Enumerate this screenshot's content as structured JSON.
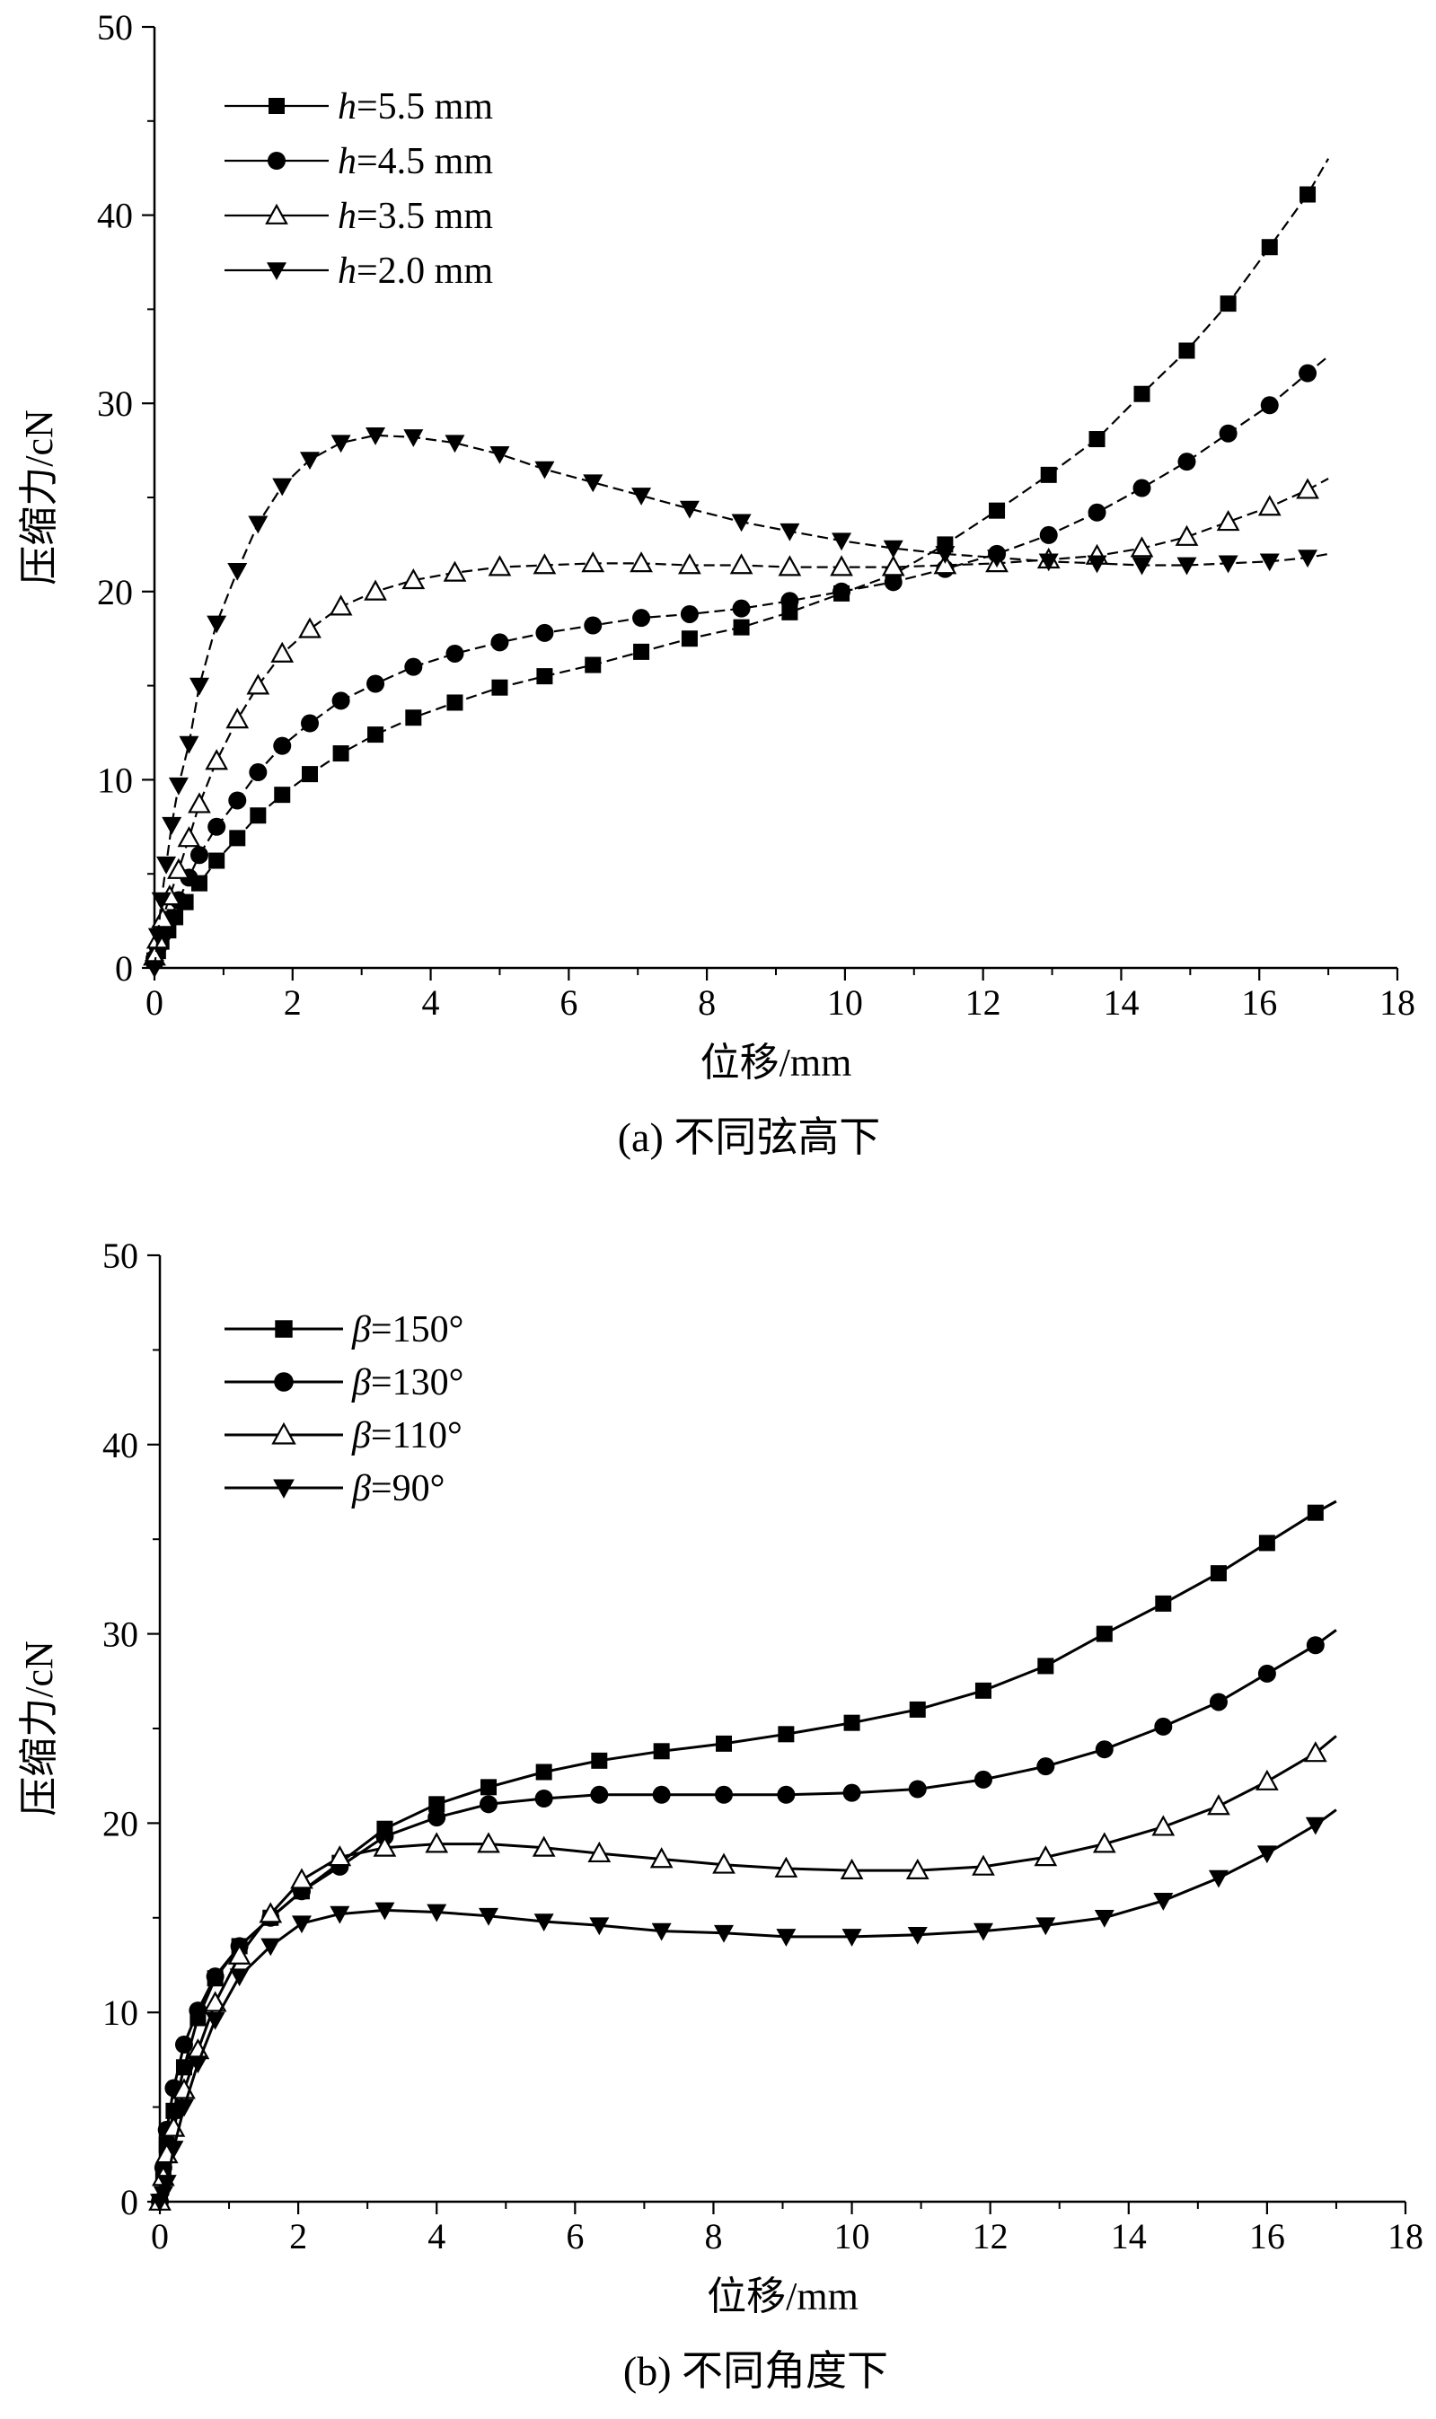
{
  "chart_data": [
    {
      "type": "line",
      "caption": "(a) 不同弦高下",
      "xlabel": "位移/mm",
      "ylabel": "压缩力/cN",
      "xlim": [
        0,
        18
      ],
      "ylim": [
        0,
        50
      ],
      "xticks": [
        "0",
        "2",
        "4",
        "6",
        "8",
        "10",
        "12",
        "14",
        "16",
        "18"
      ],
      "yticks": [
        "0",
        "10",
        "20",
        "30",
        "40",
        "50"
      ],
      "grid": false,
      "legend_position": "top-left",
      "line_style": "dashed",
      "series": [
        {
          "name": "h=5.5 mm",
          "var": "h",
          "rest": "=5.5 mm",
          "marker": "square",
          "x": [
            0.0,
            0.05,
            0.1,
            0.2,
            0.3,
            0.45,
            0.65,
            0.9,
            1.2,
            1.5,
            1.85,
            2.25,
            2.7,
            3.2,
            3.75,
            4.35,
            5.0,
            5.65,
            6.35,
            7.05,
            7.75,
            8.5,
            9.2,
            9.95,
            10.7,
            11.45,
            12.2,
            12.95,
            13.65,
            14.3,
            14.95,
            15.55,
            16.15,
            16.7
          ],
          "y": [
            0.4,
            0.9,
            1.4,
            2.0,
            2.7,
            3.5,
            4.5,
            5.7,
            6.9,
            8.1,
            9.2,
            10.3,
            11.4,
            12.4,
            13.3,
            14.1,
            14.9,
            15.5,
            16.1,
            16.8,
            17.5,
            18.1,
            18.9,
            19.9,
            20.9,
            22.5,
            24.3,
            26.2,
            28.1,
            30.5,
            32.8,
            35.3,
            38.3,
            41.1
          ],
          "tail": [
            17.0,
            43.0
          ]
        },
        {
          "name": "h=4.5 mm",
          "var": "h",
          "rest": "=4.5 mm",
          "marker": "circle",
          "x": [
            0.0,
            0.05,
            0.12,
            0.22,
            0.35,
            0.5,
            0.65,
            0.9,
            1.2,
            1.5,
            1.85,
            2.25,
            2.7,
            3.2,
            3.75,
            4.35,
            5.0,
            5.65,
            6.35,
            7.05,
            7.75,
            8.5,
            9.2,
            9.95,
            10.7,
            11.45,
            12.2,
            12.95,
            13.65,
            14.3,
            14.95,
            15.55,
            16.15,
            16.7
          ],
          "y": [
            0.5,
            1.1,
            1.8,
            2.6,
            3.6,
            4.8,
            6.0,
            7.5,
            8.9,
            10.4,
            11.8,
            13.0,
            14.2,
            15.1,
            16.0,
            16.7,
            17.3,
            17.8,
            18.2,
            18.6,
            18.8,
            19.1,
            19.5,
            20.0,
            20.5,
            21.2,
            22.0,
            23.0,
            24.2,
            25.5,
            26.9,
            28.4,
            29.9,
            31.6
          ],
          "tail": [
            17.0,
            32.5
          ]
        },
        {
          "name": "h=3.5 mm",
          "var": "h",
          "rest": "=3.5 mm",
          "marker": "triangle-up-open",
          "x": [
            0.0,
            0.05,
            0.12,
            0.22,
            0.35,
            0.5,
            0.65,
            0.9,
            1.2,
            1.5,
            1.85,
            2.25,
            2.7,
            3.2,
            3.75,
            4.35,
            5.0,
            5.65,
            6.35,
            7.05,
            7.75,
            8.5,
            9.2,
            9.95,
            10.7,
            11.45,
            12.2,
            12.95,
            13.65,
            14.3,
            14.95,
            15.55,
            16.15,
            16.7
          ],
          "y": [
            0.6,
            1.5,
            2.6,
            3.8,
            5.2,
            6.9,
            8.7,
            11.0,
            13.2,
            15.0,
            16.7,
            18.0,
            19.2,
            20.0,
            20.6,
            21.0,
            21.3,
            21.4,
            21.5,
            21.5,
            21.4,
            21.4,
            21.3,
            21.3,
            21.3,
            21.4,
            21.5,
            21.7,
            21.9,
            22.3,
            22.9,
            23.7,
            24.5,
            25.4
          ],
          "tail": [
            17.0,
            26.0
          ]
        },
        {
          "name": "h=2.0 mm",
          "var": "h",
          "rest": "=2.0 mm",
          "marker": "triangle-down",
          "x": [
            0.0,
            0.05,
            0.1,
            0.17,
            0.25,
            0.35,
            0.5,
            0.65,
            0.9,
            1.2,
            1.5,
            1.85,
            2.25,
            2.7,
            3.2,
            3.75,
            4.35,
            5.0,
            5.65,
            6.35,
            7.05,
            7.75,
            8.5,
            9.2,
            9.95,
            10.7,
            11.45,
            12.2,
            12.95,
            13.65,
            14.3,
            14.95,
            15.55,
            16.15,
            16.7
          ],
          "y": [
            0.0,
            1.7,
            3.6,
            5.5,
            7.6,
            9.7,
            11.9,
            15.0,
            18.3,
            21.1,
            23.6,
            25.6,
            27.0,
            27.9,
            28.3,
            28.2,
            27.9,
            27.3,
            26.5,
            25.8,
            25.1,
            24.4,
            23.7,
            23.2,
            22.7,
            22.3,
            22.0,
            21.8,
            21.6,
            21.5,
            21.4,
            21.4,
            21.5,
            21.6,
            21.8
          ],
          "tail": [
            17.0,
            22.0
          ]
        }
      ]
    },
    {
      "type": "line",
      "caption": "(b) 不同角度下",
      "xlabel": "位移/mm",
      "ylabel": "压缩力/cN",
      "xlim": [
        0,
        18
      ],
      "ylim": [
        0,
        50
      ],
      "xticks": [
        "0",
        "2",
        "4",
        "6",
        "8",
        "10",
        "12",
        "14",
        "16",
        "18"
      ],
      "yticks": [
        "0",
        "10",
        "20",
        "30",
        "40",
        "50"
      ],
      "grid": false,
      "legend_position": "top-left",
      "line_style": "solid",
      "series": [
        {
          "name": "β=150°",
          "var": "β",
          "rest": "=150°",
          "marker": "square",
          "x": [
            0.0,
            0.05,
            0.1,
            0.2,
            0.35,
            0.55,
            0.8,
            1.15,
            1.6,
            2.05,
            2.6,
            3.25,
            4.0,
            4.75,
            5.55,
            6.35,
            7.25,
            8.15,
            9.05,
            10.0,
            10.95,
            11.9,
            12.8,
            13.65,
            14.5,
            15.3,
            16.0,
            16.7
          ],
          "y": [
            0.0,
            1.5,
            3.0,
            4.8,
            7.1,
            9.7,
            11.8,
            13.5,
            15.0,
            16.4,
            17.9,
            19.7,
            21.0,
            21.9,
            22.7,
            23.3,
            23.8,
            24.2,
            24.7,
            25.3,
            26.0,
            27.0,
            28.3,
            30.0,
            31.6,
            33.2,
            34.8,
            36.4
          ],
          "tail": [
            17.0,
            37.0
          ]
        },
        {
          "name": "β=130°",
          "var": "β",
          "rest": "=130°",
          "marker": "circle",
          "x": [
            0.0,
            0.05,
            0.1,
            0.2,
            0.35,
            0.55,
            0.8,
            1.15,
            1.6,
            2.05,
            2.6,
            3.25,
            4.0,
            4.75,
            5.55,
            6.35,
            7.25,
            8.15,
            9.05,
            10.0,
            10.95,
            11.9,
            12.8,
            13.65,
            14.5,
            15.3,
            16.0,
            16.7
          ],
          "y": [
            0.0,
            1.8,
            3.8,
            6.0,
            8.3,
            10.1,
            11.9,
            13.5,
            15.0,
            16.4,
            17.7,
            19.3,
            20.3,
            21.0,
            21.3,
            21.5,
            21.5,
            21.5,
            21.5,
            21.6,
            21.8,
            22.3,
            23.0,
            23.9,
            25.1,
            26.4,
            27.9,
            29.4
          ],
          "tail": [
            17.0,
            30.2
          ]
        },
        {
          "name": "β=110°",
          "var": "β",
          "rest": "=110°",
          "marker": "triangle-up-open",
          "x": [
            0.0,
            0.05,
            0.1,
            0.2,
            0.35,
            0.55,
            0.8,
            1.15,
            1.6,
            2.05,
            2.6,
            3.25,
            4.0,
            4.75,
            5.55,
            6.35,
            7.25,
            8.15,
            9.05,
            10.0,
            10.95,
            11.9,
            12.8,
            13.65,
            14.5,
            15.3,
            16.0,
            16.7
          ],
          "y": [
            0.0,
            1.3,
            2.5,
            3.9,
            5.9,
            8.0,
            10.5,
            13.0,
            15.2,
            17.0,
            18.2,
            18.7,
            18.9,
            18.9,
            18.7,
            18.4,
            18.1,
            17.8,
            17.6,
            17.5,
            17.5,
            17.7,
            18.2,
            18.9,
            19.8,
            20.9,
            22.2,
            23.7
          ],
          "tail": [
            17.0,
            24.6
          ]
        },
        {
          "name": "β=90°",
          "var": "β",
          "rest": "=90°",
          "marker": "triangle-down",
          "x": [
            0.0,
            0.05,
            0.1,
            0.2,
            0.35,
            0.55,
            0.8,
            1.15,
            1.6,
            2.05,
            2.6,
            3.25,
            4.0,
            4.75,
            5.55,
            6.35,
            7.25,
            8.15,
            9.05,
            10.0,
            10.95,
            11.9,
            12.8,
            13.65,
            14.5,
            15.3,
            16.0,
            16.7
          ],
          "y": [
            0.0,
            0.4,
            1.0,
            2.8,
            5.0,
            7.3,
            9.6,
            11.9,
            13.5,
            14.7,
            15.2,
            15.4,
            15.3,
            15.1,
            14.8,
            14.6,
            14.3,
            14.2,
            14.0,
            14.0,
            14.1,
            14.3,
            14.6,
            15.0,
            15.9,
            17.1,
            18.4,
            19.9
          ],
          "tail": [
            17.0,
            20.7
          ]
        }
      ]
    }
  ]
}
